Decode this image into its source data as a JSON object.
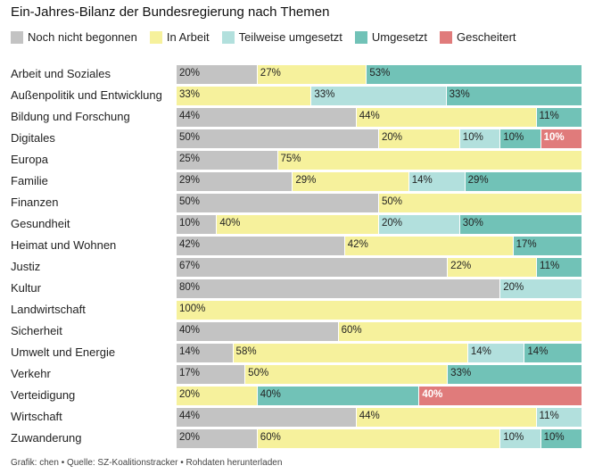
{
  "chart_data": {
    "type": "bar",
    "orientation": "horizontal",
    "stacked": true,
    "title": "Ein-Jahres-Bilanz der Bundesregierung nach Themen",
    "categories": [
      "Arbeit und Soziales",
      "Außenpolitik und Entwicklung",
      "Bildung und Forschung",
      "Digitales",
      "Europa",
      "Familie",
      "Finanzen",
      "Gesundheit",
      "Heimat und Wohnen",
      "Justiz",
      "Kultur",
      "Landwirtschaft",
      "Sicherheit",
      "Umwelt und Energie",
      "Verkehr",
      "Verteidigung",
      "Wirtschaft",
      "Zuwanderung"
    ],
    "series": [
      {
        "name": "Noch nicht begonnen",
        "color": "#c3c3c3",
        "values": [
          20,
          0,
          44,
          50,
          25,
          29,
          50,
          10,
          42,
          67,
          80,
          0,
          40,
          14,
          17,
          0,
          44,
          20
        ]
      },
      {
        "name": "In Arbeit",
        "color": "#f6f19c",
        "values": [
          27,
          33,
          44,
          20,
          75,
          29,
          50,
          40,
          42,
          22,
          0,
          100,
          60,
          58,
          50,
          20,
          44,
          60
        ]
      },
      {
        "name": "Teilweise umgesetzt",
        "color": "#b2e0dd",
        "values": [
          0,
          33,
          0,
          10,
          0,
          14,
          0,
          20,
          0,
          0,
          20,
          0,
          0,
          14,
          0,
          0,
          11,
          10
        ]
      },
      {
        "name": "Umgesetzt",
        "color": "#71c2b7",
        "values": [
          53,
          33,
          11,
          10,
          0,
          29,
          0,
          30,
          17,
          11,
          0,
          0,
          0,
          14,
          33,
          40,
          0,
          10
        ]
      },
      {
        "name": "Gescheitert",
        "color": "#e07b7b",
        "values": [
          0,
          0,
          0,
          10,
          0,
          0,
          0,
          0,
          0,
          0,
          0,
          0,
          0,
          0,
          0,
          40,
          0,
          0
        ]
      }
    ],
    "legend": "top-left",
    "grid": false
  },
  "footer": "Grafik: chen • Quelle: SZ-Koalitionstracker • Rohdaten herunterladen"
}
